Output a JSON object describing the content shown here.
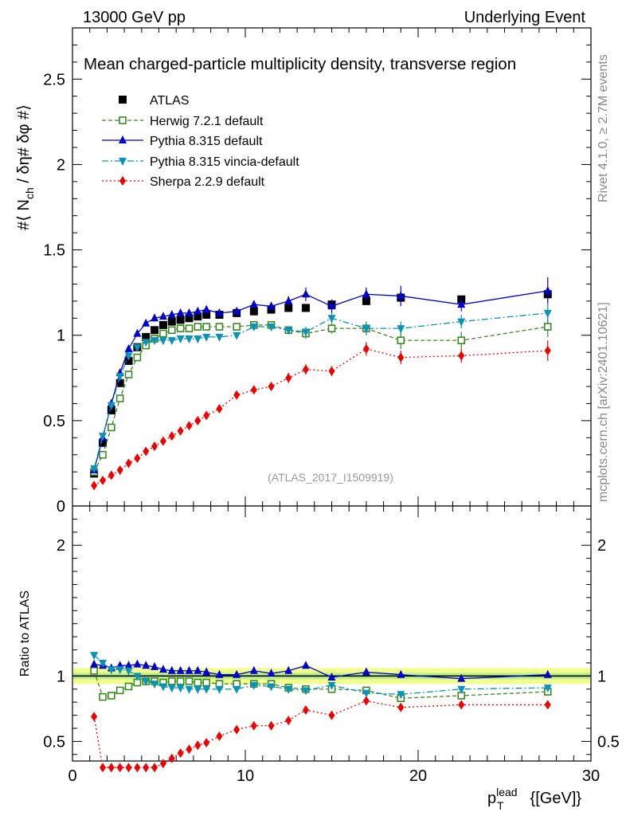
{
  "header": {
    "left": "13000 GeV pp",
    "right": "Underlying Event"
  },
  "side_text": {
    "rivet": "Rivet 4.1.0, ≥ 2.7M events",
    "mcplots": "mcplots.cern.ch [arXiv:2401.10621]"
  },
  "colors": {
    "atlas": "#000000",
    "herwig": "#3a8a1f",
    "pythia": "#0000cc",
    "vincia": "#0a93b8",
    "sherpa": "#ee0000",
    "band_outer": "#f2ff8c",
    "band_inner": "#b8f08a"
  },
  "chart_data": [
    {
      "type": "scatter",
      "title": "Mean charged-particle multiplicity density, transverse region",
      "ylabel": "#⟨ N_ch / δη# δφ #⟩",
      "ylabel_parts": {
        "prefix": "#⟨ N",
        "sub": "ch",
        "suffix": " / δη# δφ #⟩"
      },
      "xlim": [
        0,
        30
      ],
      "ylim": [
        0,
        2.8
      ],
      "yticks": [
        "0",
        "0.5",
        "1",
        "1.5",
        "2",
        "2.5"
      ],
      "ytick_values": [
        0,
        0.5,
        1,
        1.5,
        2,
        2.5
      ],
      "annotation": "(ATLAS_2017_I1509919)",
      "x": [
        1.25,
        1.75,
        2.25,
        2.75,
        3.25,
        3.75,
        4.25,
        4.75,
        5.25,
        5.75,
        6.25,
        6.75,
        7.25,
        7.75,
        8.5,
        9.5,
        10.5,
        11.5,
        12.5,
        13.5,
        15.0,
        17.0,
        19.0,
        22.5,
        27.5
      ],
      "series": [
        {
          "name": "ATLAS",
          "key": "atlas",
          "marker": "square",
          "values": [
            0.19,
            0.37,
            0.56,
            0.72,
            0.85,
            0.93,
            0.99,
            1.03,
            1.06,
            1.08,
            1.09,
            1.1,
            1.11,
            1.12,
            1.12,
            1.13,
            1.14,
            1.15,
            1.16,
            1.16,
            1.18,
            1.2,
            1.22,
            1.21,
            1.24
          ]
        },
        {
          "name": "Herwig 7.2.1 default",
          "key": "herwig",
          "marker": "open-square",
          "dash": "5,3",
          "values": [
            0.2,
            0.3,
            0.46,
            0.63,
            0.77,
            0.87,
            0.94,
            0.98,
            1.01,
            1.03,
            1.04,
            1.04,
            1.05,
            1.05,
            1.05,
            1.05,
            1.06,
            1.06,
            1.03,
            1.01,
            1.04,
            1.04,
            0.97,
            0.97,
            1.05
          ],
          "errors": [
            0.01,
            0.01,
            0.01,
            0.01,
            0.01,
            0.01,
            0.01,
            0.01,
            0.01,
            0.01,
            0.01,
            0.01,
            0.01,
            0.01,
            0.01,
            0.01,
            0.02,
            0.02,
            0.02,
            0.03,
            0.03,
            0.04,
            0.05,
            0.05,
            0.06
          ]
        },
        {
          "name": "Pythia 8.315 default",
          "key": "pythia",
          "marker": "triangle-up",
          "dash": "",
          "values": [
            0.21,
            0.4,
            0.6,
            0.78,
            0.92,
            1.01,
            1.07,
            1.1,
            1.11,
            1.12,
            1.13,
            1.13,
            1.14,
            1.15,
            1.13,
            1.14,
            1.18,
            1.17,
            1.2,
            1.24,
            1.17,
            1.24,
            1.23,
            1.18,
            1.26
          ],
          "errors": [
            0.01,
            0.01,
            0.01,
            0.01,
            0.01,
            0.01,
            0.01,
            0.01,
            0.01,
            0.01,
            0.01,
            0.01,
            0.01,
            0.01,
            0.01,
            0.02,
            0.02,
            0.02,
            0.03,
            0.04,
            0.04,
            0.04,
            0.06,
            0.04,
            0.08
          ]
        },
        {
          "name": "Pythia 8.315 vincia-default",
          "key": "vincia",
          "marker": "triangle-down",
          "dash": "8,3,2,3",
          "values": [
            0.22,
            0.41,
            0.59,
            0.76,
            0.88,
            0.93,
            0.96,
            0.97,
            0.97,
            0.97,
            0.98,
            0.98,
            0.98,
            0.99,
            0.99,
            1.0,
            1.05,
            1.05,
            1.03,
            1.02,
            1.1,
            1.04,
            1.04,
            1.08,
            1.13
          ],
          "errors": [
            0.01,
            0.01,
            0.01,
            0.01,
            0.01,
            0.01,
            0.01,
            0.01,
            0.01,
            0.01,
            0.01,
            0.01,
            0.01,
            0.01,
            0.01,
            0.01,
            0.02,
            0.02,
            0.02,
            0.03,
            0.03,
            0.04,
            0.04,
            0.04,
            0.06
          ]
        },
        {
          "name": "Sherpa 2.2.9 default",
          "key": "sherpa",
          "marker": "diamond",
          "dash": "2,3",
          "values": [
            0.12,
            0.15,
            0.18,
            0.21,
            0.25,
            0.28,
            0.32,
            0.35,
            0.38,
            0.41,
            0.44,
            0.47,
            0.5,
            0.53,
            0.57,
            0.65,
            0.68,
            0.7,
            0.75,
            0.8,
            0.79,
            0.92,
            0.87,
            0.88,
            0.91
          ],
          "errors": [
            0.01,
            0.01,
            0.01,
            0.01,
            0.01,
            0.01,
            0.01,
            0.01,
            0.01,
            0.01,
            0.01,
            0.01,
            0.01,
            0.01,
            0.01,
            0.02,
            0.02,
            0.02,
            0.03,
            0.03,
            0.03,
            0.04,
            0.04,
            0.04,
            0.06
          ]
        }
      ]
    },
    {
      "type": "scatter",
      "title": "",
      "ylabel": "Ratio to ATLAS",
      "xlabel": "p_T^lead {[GeV]}",
      "xlabel_parts": {
        "base": "p",
        "sub": "T",
        "sup": "lead",
        "suffix": " {[GeV]}"
      },
      "xlim": [
        0,
        30
      ],
      "ylim": [
        0.35,
        2.3
      ],
      "xticks": [
        "0",
        "10",
        "20",
        "30"
      ],
      "xtick_values": [
        0,
        10,
        20,
        30
      ],
      "yticks": [
        "0.5",
        "1",
        "2"
      ],
      "ytick_values": [
        0.5,
        1,
        2
      ],
      "reference": 1.0,
      "x": [
        1.25,
        1.75,
        2.25,
        2.75,
        3.25,
        3.75,
        4.25,
        4.75,
        5.25,
        5.75,
        6.25,
        6.75,
        7.25,
        7.75,
        8.5,
        9.5,
        10.5,
        11.5,
        12.5,
        13.5,
        15.0,
        17.0,
        19.0,
        22.5,
        27.5
      ],
      "series": [
        {
          "name": "Herwig 7.2.1 default",
          "key": "herwig",
          "marker": "open-square",
          "dash": "5,3",
          "values": [
            1.04,
            0.84,
            0.85,
            0.89,
            0.92,
            0.95,
            0.96,
            0.96,
            0.95,
            0.96,
            0.96,
            0.96,
            0.95,
            0.95,
            0.94,
            0.94,
            0.94,
            0.94,
            0.91,
            0.9,
            0.9,
            0.89,
            0.83,
            0.85,
            0.88
          ]
        },
        {
          "name": "Pythia 8.315 default",
          "key": "pythia",
          "marker": "triangle-up",
          "dash": "",
          "values": [
            1.09,
            1.08,
            1.06,
            1.08,
            1.08,
            1.09,
            1.08,
            1.07,
            1.05,
            1.04,
            1.04,
            1.04,
            1.04,
            1.03,
            1.01,
            1.01,
            1.04,
            1.02,
            1.04,
            1.08,
            0.99,
            1.03,
            1.01,
            0.98,
            1.01
          ]
        },
        {
          "name": "Pythia 8.315 vincia-default",
          "key": "vincia",
          "marker": "triangle-down",
          "dash": "8,3,2,3",
          "values": [
            1.16,
            1.1,
            1.05,
            1.05,
            1.04,
            1.0,
            0.96,
            0.94,
            0.92,
            0.91,
            0.91,
            0.9,
            0.9,
            0.9,
            0.9,
            0.9,
            0.93,
            0.92,
            0.9,
            0.89,
            0.93,
            0.87,
            0.86,
            0.9,
            0.91
          ]
        },
        {
          "name": "Sherpa 2.2.9 default",
          "key": "sherpa",
          "marker": "diamond",
          "dash": "2,3",
          "values": [
            0.69,
            0.3,
            0.3,
            0.3,
            0.3,
            0.3,
            0.3,
            0.3,
            0.33,
            0.37,
            0.41,
            0.44,
            0.47,
            0.49,
            0.54,
            0.59,
            0.62,
            0.62,
            0.66,
            0.74,
            0.7,
            0.81,
            0.76,
            0.78,
            0.78
          ]
        }
      ]
    }
  ]
}
